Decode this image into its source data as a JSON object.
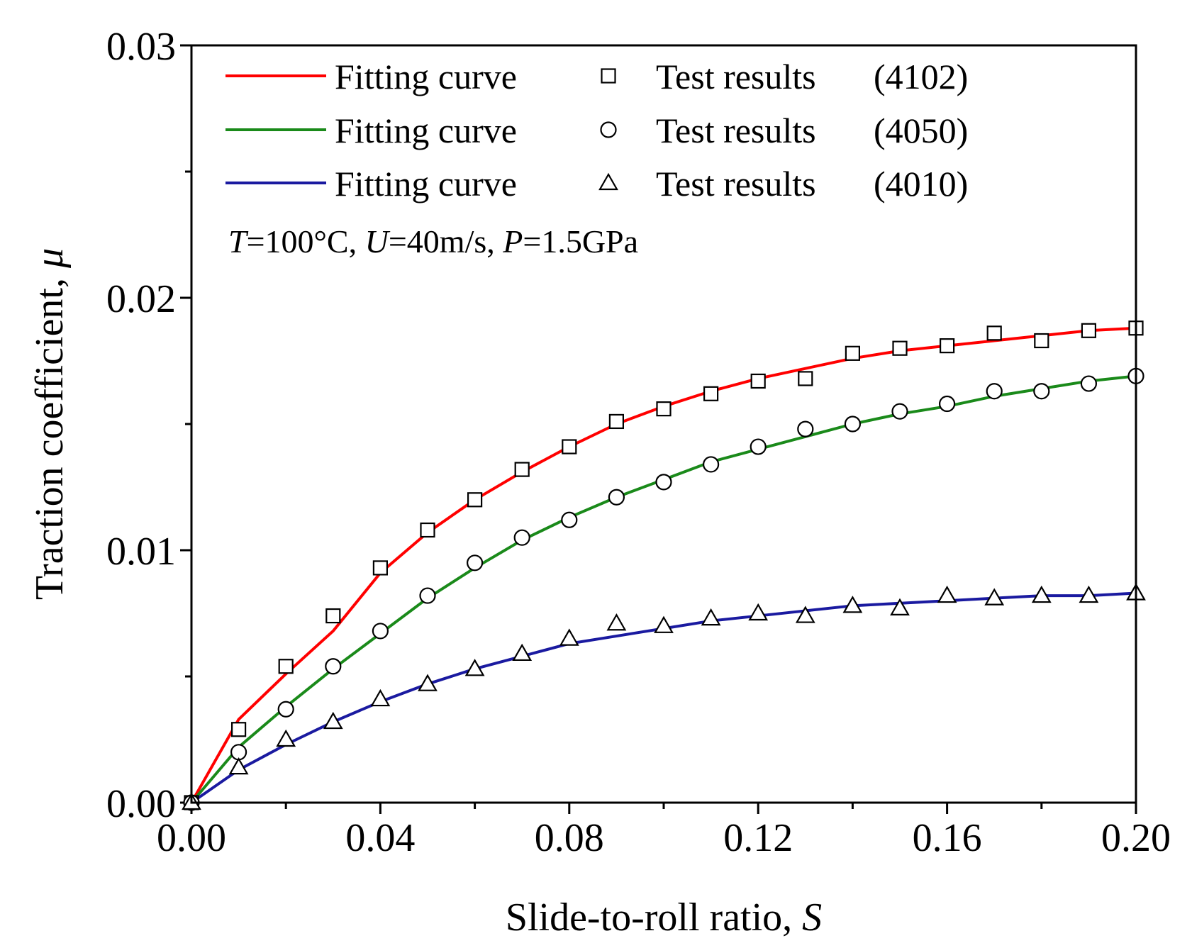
{
  "chart_data": {
    "type": "line",
    "xlabel": "Slide-to-roll ratio, ",
    "xlabel_var": "S",
    "ylabel": "Traction coefficient, ",
    "ylabel_var": "μ",
    "xlim": [
      0,
      0.2
    ],
    "ylim": [
      0,
      0.03
    ],
    "x_ticks": [
      0,
      0.04,
      0.08,
      0.12,
      0.16,
      0.2
    ],
    "x_tick_labels": [
      "0.00",
      "0.04",
      "0.08",
      "0.12",
      "0.16",
      "0.20"
    ],
    "y_ticks": [
      0,
      0.01,
      0.02,
      0.03
    ],
    "y_tick_labels": [
      "0.00",
      "0.01",
      "0.02",
      "0.03"
    ],
    "y_minor_ticks": [
      0.005,
      0.015,
      0.025
    ],
    "x_minor_ticks": [
      0.02,
      0.06,
      0.1,
      0.14,
      0.18
    ],
    "legend_position": "top-left",
    "condition_parts": [
      {
        "text": "T",
        "italic": true
      },
      {
        "text": "=100°C, ",
        "italic": false
      },
      {
        "text": "U",
        "italic": true
      },
      {
        "text": "=40m/s, ",
        "italic": false
      },
      {
        "text": "P",
        "italic": true
      },
      {
        "text": "=1.5GPa",
        "italic": false
      }
    ],
    "series": [
      {
        "fit_name": "Fitting curve",
        "test_name": "Test results",
        "id_label": "(4102)",
        "color": "#ff0000",
        "marker": "square",
        "x": [
          0,
          0.01,
          0.02,
          0.03,
          0.04,
          0.05,
          0.06,
          0.07,
          0.08,
          0.09,
          0.1,
          0.11,
          0.12,
          0.13,
          0.14,
          0.15,
          0.16,
          0.17,
          0.18,
          0.19,
          0.2
        ],
        "y": [
          0,
          0.0029,
          0.0054,
          0.0074,
          0.0093,
          0.0108,
          0.012,
          0.0132,
          0.0141,
          0.0151,
          0.0156,
          0.0162,
          0.0167,
          0.0168,
          0.0178,
          0.018,
          0.0181,
          0.0186,
          0.0183,
          0.0187,
          0.0188
        ],
        "fit_y": [
          0,
          0.0033,
          0.0051,
          0.0068,
          0.0091,
          0.0107,
          0.012,
          0.0131,
          0.0141,
          0.015,
          0.0157,
          0.0163,
          0.0168,
          0.0172,
          0.0176,
          0.0179,
          0.0181,
          0.0183,
          0.0185,
          0.0187,
          0.0188
        ]
      },
      {
        "fit_name": "Fitting curve",
        "test_name": "Test results",
        "id_label": "(4050)",
        "color": "#1a8a1a",
        "marker": "circle",
        "x": [
          0,
          0.01,
          0.02,
          0.03,
          0.04,
          0.05,
          0.06,
          0.07,
          0.08,
          0.09,
          0.1,
          0.11,
          0.12,
          0.13,
          0.14,
          0.15,
          0.16,
          0.17,
          0.18,
          0.19,
          0.2
        ],
        "y": [
          0,
          0.002,
          0.0037,
          0.0054,
          0.0068,
          0.0082,
          0.0095,
          0.0105,
          0.0112,
          0.0121,
          0.0127,
          0.0134,
          0.0141,
          0.0148,
          0.015,
          0.0155,
          0.0158,
          0.0163,
          0.0163,
          0.0166,
          0.0169
        ],
        "fit_y": [
          0,
          0.0022,
          0.0038,
          0.0053,
          0.0067,
          0.0081,
          0.0093,
          0.0104,
          0.0113,
          0.0121,
          0.0128,
          0.0135,
          0.014,
          0.0145,
          0.015,
          0.0154,
          0.0157,
          0.0161,
          0.0164,
          0.0167,
          0.0169
        ]
      },
      {
        "fit_name": "Fitting curve",
        "test_name": "Test results",
        "id_label": "(4010)",
        "color": "#1a1aa0",
        "marker": "triangle",
        "x": [
          0,
          0.01,
          0.02,
          0.03,
          0.04,
          0.05,
          0.06,
          0.07,
          0.08,
          0.09,
          0.1,
          0.11,
          0.12,
          0.13,
          0.14,
          0.15,
          0.16,
          0.17,
          0.18,
          0.19,
          0.2
        ],
        "y": [
          0,
          0.0014,
          0.0025,
          0.0032,
          0.0041,
          0.0047,
          0.0053,
          0.0059,
          0.0065,
          0.0071,
          0.007,
          0.0073,
          0.0075,
          0.0074,
          0.0078,
          0.0077,
          0.0082,
          0.0081,
          0.0082,
          0.0082,
          0.0083
        ],
        "fit_y": [
          0,
          0.0013,
          0.0023,
          0.0032,
          0.004,
          0.0047,
          0.0053,
          0.0058,
          0.0063,
          0.0066,
          0.0069,
          0.0072,
          0.0074,
          0.0076,
          0.0078,
          0.0079,
          0.008,
          0.0081,
          0.0082,
          0.0082,
          0.0083
        ]
      }
    ]
  }
}
